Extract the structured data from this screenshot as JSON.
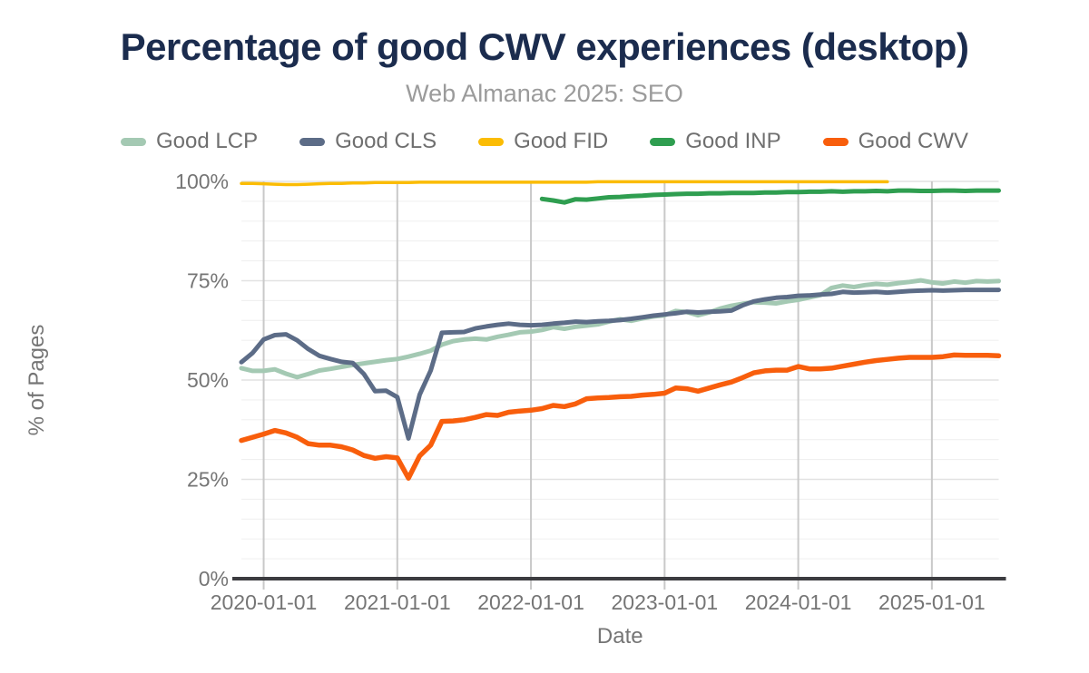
{
  "chart_data": {
    "type": "line",
    "title": "Percentage of good CWV experiences (desktop)",
    "subtitle": "Web Almanac 2025: SEO",
    "xlabel": "Date",
    "ylabel": "% of Pages",
    "ylim": [
      0,
      100
    ],
    "y_tick_values": [
      0,
      25,
      50,
      75,
      100
    ],
    "y_tick_labels": [
      "0%",
      "25%",
      "50%",
      "75%",
      "100%"
    ],
    "minor_gridline_step_percent": 5,
    "x_unit": "month",
    "x_start_month": "2019-11",
    "x_end_month": "2025-07",
    "x_month_count": 69,
    "x_tick_labels": [
      "2020-01-01",
      "2021-01-01",
      "2022-01-01",
      "2023-01-01",
      "2024-01-01",
      "2025-01-01"
    ],
    "x_tick_month_offsets": [
      2,
      14,
      26,
      38,
      50,
      62
    ],
    "legend_position": "top",
    "colors": {
      "title": "#1b2c4e",
      "subtitle": "#9b9b9b",
      "axis_text": "#757575",
      "axis_line": "#3c3c40",
      "year_gridline": "#c9c9c9",
      "minor_gridline": "#f0f0f0",
      "major_gridline": "#e2e2e2"
    },
    "series": [
      {
        "name": "Good LCP",
        "color": "#a4c9b3",
        "stroke_width": 5,
        "start_month": "2019-11",
        "start_offset": 0,
        "values": [
          53.0,
          52.3,
          52.3,
          52.7,
          51.6,
          50.7,
          51.5,
          52.4,
          52.8,
          53.3,
          53.8,
          54.2,
          54.6,
          55.0,
          55.3,
          55.9,
          56.6,
          57.4,
          58.9,
          59.8,
          60.2,
          60.4,
          60.2,
          60.9,
          61.4,
          62.0,
          62.2,
          62.6,
          63.3,
          62.9,
          63.4,
          63.7,
          64.0,
          64.7,
          65.3,
          64.9,
          65.5,
          66.0,
          66.3,
          67.4,
          67.1,
          66.3,
          67.0,
          68.0,
          68.7,
          69.2,
          69.6,
          69.5,
          69.3,
          69.8,
          70.2,
          70.8,
          71.4,
          73.2,
          73.8,
          73.4,
          73.9,
          74.2,
          74.0,
          74.4,
          74.7,
          75.1,
          74.6,
          74.3,
          74.8,
          74.5,
          74.9,
          74.8,
          74.9
        ]
      },
      {
        "name": "Good CLS",
        "color": "#5c6c87",
        "stroke_width": 5,
        "start_month": "2019-11",
        "start_offset": 0,
        "values": [
          54.5,
          56.8,
          60.2,
          61.3,
          61.5,
          60.0,
          57.8,
          56.1,
          55.3,
          54.6,
          54.3,
          51.5,
          47.2,
          47.3,
          45.7,
          35.3,
          46.3,
          52.4,
          61.9,
          62.0,
          62.1,
          63.0,
          63.5,
          63.9,
          64.2,
          63.9,
          63.8,
          63.9,
          64.2,
          64.4,
          64.7,
          64.6,
          64.8,
          64.9,
          65.1,
          65.4,
          65.8,
          66.2,
          66.5,
          66.8,
          67.2,
          67.0,
          67.2,
          67.3,
          67.5,
          68.8,
          69.8,
          70.3,
          70.7,
          70.9,
          71.2,
          71.3,
          71.5,
          71.7,
          72.2,
          72.0,
          72.1,
          72.2,
          72.0,
          72.2,
          72.4,
          72.5,
          72.6,
          72.5,
          72.6,
          72.7,
          72.7,
          72.7,
          72.7
        ]
      },
      {
        "name": "Good FID",
        "color": "#fbbc04",
        "stroke_width": 3.5,
        "start_month": "2019-11",
        "start_offset": 0,
        "values": [
          99.5,
          99.5,
          99.4,
          99.3,
          99.2,
          99.2,
          99.3,
          99.4,
          99.5,
          99.5,
          99.6,
          99.6,
          99.7,
          99.7,
          99.7,
          99.7,
          99.8,
          99.8,
          99.8,
          99.8,
          99.8,
          99.8,
          99.8,
          99.8,
          99.8,
          99.8,
          99.8,
          99.8,
          99.8,
          99.8,
          99.8,
          99.8,
          99.9,
          99.9,
          99.9,
          99.9,
          99.9,
          99.9,
          99.9,
          99.9,
          99.9,
          99.9,
          99.9,
          99.9,
          99.9,
          99.9,
          99.9,
          99.9,
          99.9,
          99.9,
          99.9,
          99.9,
          99.9,
          99.9,
          99.9,
          99.9,
          99.9,
          99.9,
          99.9
        ]
      },
      {
        "name": "Good INP",
        "color": "#2f9e50",
        "stroke_width": 5,
        "start_month": "2022-02",
        "start_offset": 27,
        "values": [
          95.6,
          95.2,
          94.7,
          95.5,
          95.4,
          95.7,
          96.0,
          96.1,
          96.3,
          96.4,
          96.6,
          96.7,
          96.8,
          96.9,
          96.9,
          97.0,
          97.0,
          97.1,
          97.1,
          97.1,
          97.2,
          97.2,
          97.3,
          97.3,
          97.4,
          97.4,
          97.5,
          97.4,
          97.5,
          97.5,
          97.6,
          97.5,
          97.7,
          97.7,
          97.6,
          97.6,
          97.7,
          97.7,
          97.6,
          97.7,
          97.7,
          97.7
        ]
      },
      {
        "name": "Good CWV",
        "color": "#f85e0c",
        "stroke_width": 5.5,
        "start_month": "2019-11",
        "start_offset": 0,
        "values": [
          34.8,
          35.6,
          36.4,
          37.3,
          36.7,
          35.6,
          34.0,
          33.6,
          33.6,
          33.2,
          32.4,
          31.0,
          30.3,
          30.7,
          30.4,
          25.3,
          30.9,
          33.6,
          39.6,
          39.7,
          40.0,
          40.6,
          41.3,
          41.1,
          41.9,
          42.2,
          42.4,
          42.8,
          43.6,
          43.3,
          44.0,
          45.3,
          45.5,
          45.6,
          45.8,
          45.9,
          46.2,
          46.4,
          46.7,
          48.0,
          47.8,
          47.2,
          48.0,
          48.8,
          49.5,
          50.6,
          51.8,
          52.3,
          52.5,
          52.5,
          53.4,
          52.8,
          52.8,
          53.0,
          53.5,
          54.0,
          54.5,
          54.9,
          55.2,
          55.5,
          55.7,
          55.7,
          55.7,
          55.9,
          56.3,
          56.2,
          56.2,
          56.2,
          56.1
        ]
      }
    ]
  }
}
